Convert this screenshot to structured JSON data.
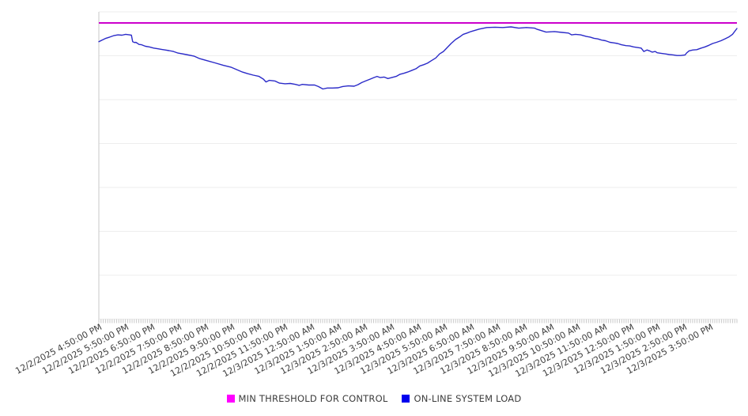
{
  "chart_data": {
    "type": "line",
    "title": "",
    "legend_position": "bottom",
    "x_axis": {
      "tick_labels": [
        "12/2/2025 4:50:00 PM",
        "12/2/2025 5:50:00 PM",
        "12/2/2025 6:50:00 PM",
        "12/2/2025 7:50:00 PM",
        "12/2/2025 8:50:00 PM",
        "12/2/2025 9:50:00 PM",
        "12/2/2025 10:50:00 PM",
        "12/2/2025 11:50:00 PM",
        "12/3/2025 12:50:00 AM",
        "12/3/2025 1:50:00 AM",
        "12/3/2025 2:50:00 AM",
        "12/3/2025 3:50:00 AM",
        "12/3/2025 4:50:00 AM",
        "12/3/2025 5:50:00 AM",
        "12/3/2025 6:50:00 AM",
        "12/3/2025 7:50:00 AM",
        "12/3/2025 8:50:00 AM",
        "12/3/2025 9:50:00 AM",
        "12/3/2025 10:50:00 AM",
        "12/3/2025 11:50:00 AM",
        "12/3/2025 12:50:00 PM",
        "12/3/2025 1:50:00 PM",
        "12/3/2025 2:50:00 PM",
        "12/3/2025 3:50:00 PM"
      ],
      "minor_ticks_per_label": 12,
      "label_rotation_deg": -28
    },
    "y_axis": {
      "tick_labels_visible": false,
      "gridline_count": 8,
      "ylim": [
        0,
        100
      ]
    },
    "series": [
      {
        "name": "MIN THRESHOLD FOR CONTROL",
        "type": "threshold-line",
        "line_color": "#cc00cc",
        "line_width": 2,
        "value": 96.4
      },
      {
        "name": "ON-LINE SYSTEM LOAD",
        "type": "line",
        "line_color": "#2a2ac8",
        "line_width": 1.4,
        "points": [
          [
            0.0,
            90.3
          ],
          [
            0.005,
            90.8
          ],
          [
            0.011,
            91.4
          ],
          [
            0.017,
            91.8
          ],
          [
            0.024,
            92.3
          ],
          [
            0.03,
            92.5
          ],
          [
            0.036,
            92.4
          ],
          [
            0.042,
            92.7
          ],
          [
            0.048,
            92.5
          ],
          [
            0.051,
            92.4
          ],
          [
            0.053,
            90.3
          ],
          [
            0.056,
            90.0
          ],
          [
            0.058,
            90.1
          ],
          [
            0.061,
            89.7
          ],
          [
            0.063,
            89.4
          ],
          [
            0.067,
            89.3
          ],
          [
            0.073,
            88.8
          ],
          [
            0.079,
            88.6
          ],
          [
            0.086,
            88.2
          ],
          [
            0.092,
            88.0
          ],
          [
            0.098,
            87.8
          ],
          [
            0.104,
            87.6
          ],
          [
            0.11,
            87.4
          ],
          [
            0.117,
            87.1
          ],
          [
            0.124,
            86.6
          ],
          [
            0.137,
            86.1
          ],
          [
            0.149,
            85.6
          ],
          [
            0.158,
            84.8
          ],
          [
            0.17,
            84.1
          ],
          [
            0.182,
            83.4
          ],
          [
            0.195,
            82.6
          ],
          [
            0.207,
            82.0
          ],
          [
            0.216,
            81.2
          ],
          [
            0.225,
            80.4
          ],
          [
            0.233,
            79.9
          ],
          [
            0.242,
            79.4
          ],
          [
            0.251,
            79.0
          ],
          [
            0.258,
            78.1
          ],
          [
            0.262,
            77.2
          ],
          [
            0.267,
            77.7
          ],
          [
            0.276,
            77.5
          ],
          [
            0.283,
            76.8
          ],
          [
            0.292,
            76.6
          ],
          [
            0.3,
            76.7
          ],
          [
            0.308,
            76.4
          ],
          [
            0.314,
            76.1
          ],
          [
            0.319,
            76.4
          ],
          [
            0.329,
            76.2
          ],
          [
            0.338,
            76.2
          ],
          [
            0.344,
            75.7
          ],
          [
            0.351,
            74.9
          ],
          [
            0.358,
            75.2
          ],
          [
            0.366,
            75.2
          ],
          [
            0.375,
            75.3
          ],
          [
            0.382,
            75.7
          ],
          [
            0.391,
            75.9
          ],
          [
            0.4,
            75.8
          ],
          [
            0.406,
            76.3
          ],
          [
            0.412,
            77.0
          ],
          [
            0.418,
            77.5
          ],
          [
            0.425,
            78.1
          ],
          [
            0.431,
            78.6
          ],
          [
            0.436,
            79.0
          ],
          [
            0.441,
            78.6
          ],
          [
            0.447,
            78.8
          ],
          [
            0.453,
            78.3
          ],
          [
            0.459,
            78.6
          ],
          [
            0.466,
            79.0
          ],
          [
            0.472,
            79.7
          ],
          [
            0.478,
            80.0
          ],
          [
            0.484,
            80.4
          ],
          [
            0.49,
            80.9
          ],
          [
            0.497,
            81.5
          ],
          [
            0.503,
            82.4
          ],
          [
            0.509,
            82.8
          ],
          [
            0.515,
            83.3
          ],
          [
            0.521,
            84.1
          ],
          [
            0.528,
            85.0
          ],
          [
            0.534,
            86.3
          ],
          [
            0.54,
            87.1
          ],
          [
            0.546,
            88.4
          ],
          [
            0.552,
            89.7
          ],
          [
            0.559,
            91.0
          ],
          [
            0.565,
            91.8
          ],
          [
            0.571,
            92.7
          ],
          [
            0.577,
            93.1
          ],
          [
            0.583,
            93.6
          ],
          [
            0.596,
            94.4
          ],
          [
            0.608,
            94.9
          ],
          [
            0.621,
            95.0
          ],
          [
            0.633,
            94.9
          ],
          [
            0.646,
            95.1
          ],
          [
            0.658,
            94.7
          ],
          [
            0.67,
            94.9
          ],
          [
            0.683,
            94.7
          ],
          [
            0.687,
            94.3
          ],
          [
            0.701,
            93.4
          ],
          [
            0.714,
            93.6
          ],
          [
            0.726,
            93.3
          ],
          [
            0.736,
            93.1
          ],
          [
            0.741,
            92.5
          ],
          [
            0.747,
            92.7
          ],
          [
            0.755,
            92.5
          ],
          [
            0.764,
            92.0
          ],
          [
            0.77,
            91.8
          ],
          [
            0.776,
            91.4
          ],
          [
            0.782,
            91.2
          ],
          [
            0.788,
            90.8
          ],
          [
            0.794,
            90.6
          ],
          [
            0.801,
            90.1
          ],
          [
            0.807,
            89.9
          ],
          [
            0.813,
            89.7
          ],
          [
            0.819,
            89.3
          ],
          [
            0.826,
            89.0
          ],
          [
            0.832,
            88.9
          ],
          [
            0.838,
            88.6
          ],
          [
            0.844,
            88.4
          ],
          [
            0.85,
            88.2
          ],
          [
            0.854,
            87.1
          ],
          [
            0.859,
            87.6
          ],
          [
            0.863,
            87.3
          ],
          [
            0.867,
            86.9
          ],
          [
            0.872,
            87.1
          ],
          [
            0.875,
            86.7
          ],
          [
            0.881,
            86.5
          ],
          [
            0.888,
            86.3
          ],
          [
            0.894,
            86.1
          ],
          [
            0.9,
            86.0
          ],
          [
            0.906,
            85.8
          ],
          [
            0.912,
            85.8
          ],
          [
            0.919,
            86.0
          ],
          [
            0.921,
            86.6
          ],
          [
            0.925,
            87.3
          ],
          [
            0.931,
            87.6
          ],
          [
            0.937,
            87.7
          ],
          [
            0.944,
            88.2
          ],
          [
            0.95,
            88.6
          ],
          [
            0.956,
            89.1
          ],
          [
            0.962,
            89.7
          ],
          [
            0.968,
            90.1
          ],
          [
            0.975,
            90.6
          ],
          [
            0.981,
            91.2
          ],
          [
            0.987,
            91.8
          ],
          [
            0.993,
            92.7
          ],
          [
            1.0,
            94.6
          ]
        ]
      }
    ],
    "colors": {
      "gridline": "#ededed",
      "axis": "#c9c9c9",
      "tick": "#c9c9c9",
      "label_text": "#3d3d3d"
    }
  },
  "legend": {
    "items": [
      {
        "label": "MIN THRESHOLD FOR CONTROL",
        "swatch_color": "#ff00ff"
      },
      {
        "label": "ON-LINE SYSTEM LOAD",
        "swatch_color": "#0000ee"
      }
    ]
  }
}
